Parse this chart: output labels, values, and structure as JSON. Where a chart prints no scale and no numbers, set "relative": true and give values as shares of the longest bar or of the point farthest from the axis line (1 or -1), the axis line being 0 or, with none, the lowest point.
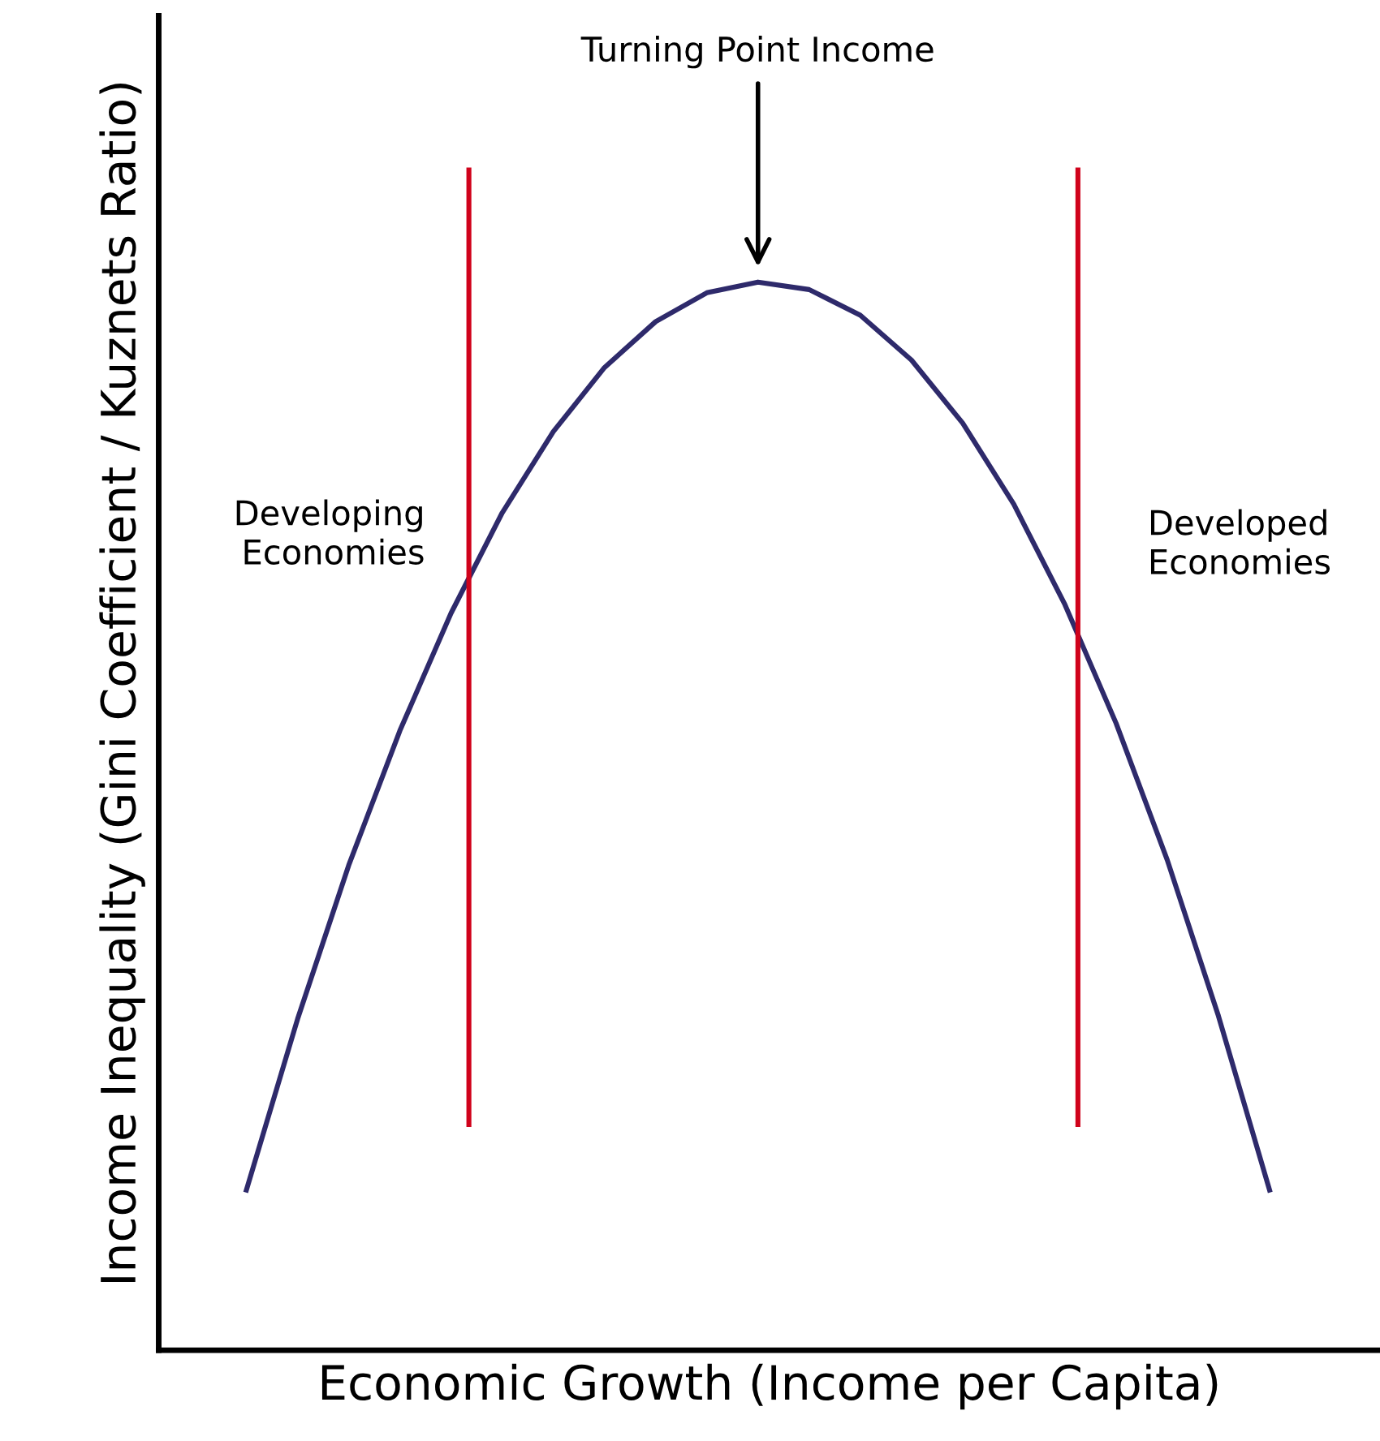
{
  "chart_data": {
    "type": "line",
    "relative": true,
    "xlabel": "Economic Growth (Income per Capita)",
    "ylabel": "Income Inequality (Gini Coefficient / Kuznets Ratio)",
    "categories": [
      null,
      null,
      null,
      null,
      null,
      null,
      null,
      null,
      null,
      null,
      null,
      null,
      null,
      null,
      null,
      null,
      null,
      null,
      null,
      null,
      null
    ],
    "series": [
      {
        "color": "#2e2a6b",
        "values": [
          0.15,
          0.31,
          0.454,
          0.58,
          0.69,
          0.784,
          0.86,
          0.92,
          0.963,
          0.99,
          1.0,
          0.993,
          0.969,
          0.927,
          0.868,
          0.792,
          0.698,
          0.587,
          0.459,
          0.313,
          0.15
        ]
      }
    ],
    "annotations": [
      "Turning Point Income",
      "Developing\nEconomies",
      "Developed\nEconomies"
    ],
    "legend": false,
    "marker": "none",
    "line_style": "solid"
  }
}
